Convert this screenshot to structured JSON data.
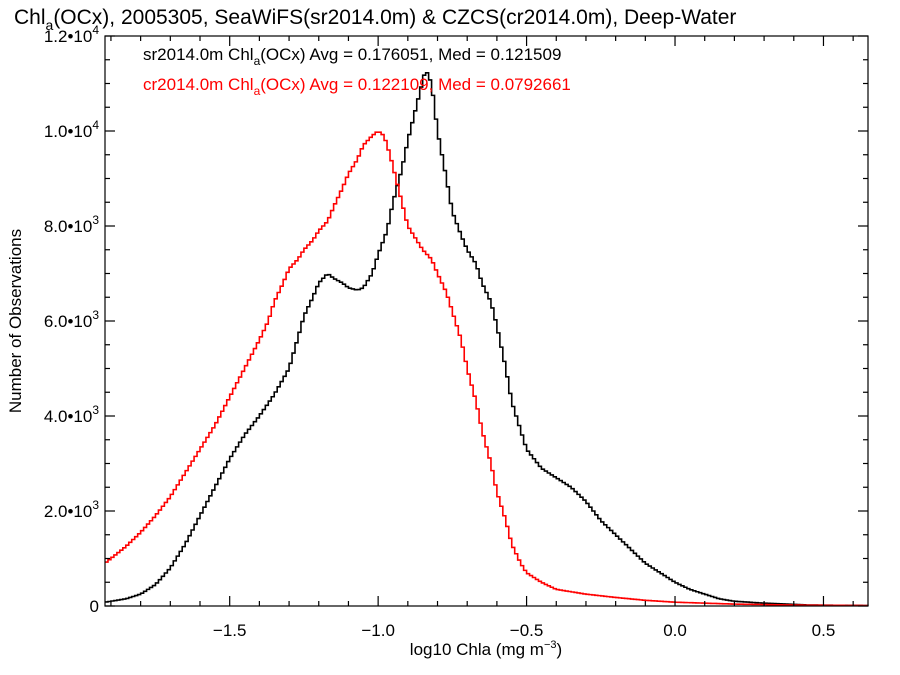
{
  "chart_data": {
    "type": "histogram",
    "title": "Chl_a(OCx), 2005305, SeaWiFS(sr2014.0m) & CZCS(cr2014.0m), Deep-Water",
    "title_parts": {
      "pre": "Chl",
      "sub": "a",
      "post": "(OCx), 2005305, SeaWiFS(sr2014.0m) & CZCS(cr2014.0m), Deep-Water"
    },
    "xlabel": "log10 Chla (mg m^-3)",
    "xlabel_parts": {
      "pre": "log10 Chla (mg m",
      "sup": "−3",
      "post": ")"
    },
    "ylabel": "Number of Observations",
    "xlim": [
      -1.92,
      0.65
    ],
    "ylim": [
      0,
      12000
    ],
    "x_ticks": [
      -1.5,
      -1.0,
      -0.5,
      0.0,
      0.5
    ],
    "x_tick_labels": [
      "−1.5",
      "−1.0",
      "−0.5",
      "0.0",
      "0.5"
    ],
    "y_ticks": [
      {
        "value": 0,
        "mant": "0",
        "exp": ""
      },
      {
        "value": 2000,
        "mant": "2.0•10",
        "exp": "3"
      },
      {
        "value": 4000,
        "mant": "4.0•10",
        "exp": "3"
      },
      {
        "value": 6000,
        "mant": "6.0•10",
        "exp": "3"
      },
      {
        "value": 8000,
        "mant": "8.0•10",
        "exp": "3"
      },
      {
        "value": 10000,
        "mant": "1.0•10",
        "exp": "4"
      },
      {
        "value": 12000,
        "mant": "1.2•10",
        "exp": "4"
      }
    ],
    "legend": [
      {
        "pre": "sr2014.0m Chl",
        "sub": "a",
        "post": "(OCx) Avg = 0.176051, Med = 0.121509",
        "color": "#000000"
      },
      {
        "pre": "cr2014.0m Chl",
        "sub": "a",
        "post": "(OCx) Avg = 0.122109, Med = 0.0792661",
        "color": "#ff0000"
      }
    ],
    "series": [
      {
        "name": "sr2014.0m",
        "color": "#000000",
        "points": [
          [
            -1.92,
            80
          ],
          [
            -1.85,
            150
          ],
          [
            -1.8,
            250
          ],
          [
            -1.75,
            450
          ],
          [
            -1.7,
            800
          ],
          [
            -1.65,
            1300
          ],
          [
            -1.6,
            1900
          ],
          [
            -1.55,
            2500
          ],
          [
            -1.5,
            3100
          ],
          [
            -1.45,
            3600
          ],
          [
            -1.4,
            4000
          ],
          [
            -1.35,
            4450
          ],
          [
            -1.3,
            5000
          ],
          [
            -1.27,
            5650
          ],
          [
            -1.25,
            6100
          ],
          [
            -1.22,
            6500
          ],
          [
            -1.2,
            6800
          ],
          [
            -1.17,
            7000
          ],
          [
            -1.15,
            6900
          ],
          [
            -1.12,
            6800
          ],
          [
            -1.1,
            6700
          ],
          [
            -1.07,
            6650
          ],
          [
            -1.05,
            6700
          ],
          [
            -1.02,
            7000
          ],
          [
            -1.0,
            7400
          ],
          [
            -0.97,
            7900
          ],
          [
            -0.95,
            8500
          ],
          [
            -0.92,
            9200
          ],
          [
            -0.9,
            9800
          ],
          [
            -0.88,
            10300
          ],
          [
            -0.86,
            10800
          ],
          [
            -0.84,
            11300
          ],
          [
            -0.82,
            11000
          ],
          [
            -0.8,
            10000
          ],
          [
            -0.77,
            9000
          ],
          [
            -0.75,
            8300
          ],
          [
            -0.72,
            7800
          ],
          [
            -0.7,
            7500
          ],
          [
            -0.67,
            7200
          ],
          [
            -0.65,
            6800
          ],
          [
            -0.62,
            6400
          ],
          [
            -0.6,
            5900
          ],
          [
            -0.57,
            5000
          ],
          [
            -0.55,
            4300
          ],
          [
            -0.52,
            3700
          ],
          [
            -0.5,
            3300
          ],
          [
            -0.45,
            2900
          ],
          [
            -0.4,
            2700
          ],
          [
            -0.35,
            2500
          ],
          [
            -0.3,
            2200
          ],
          [
            -0.25,
            1800
          ],
          [
            -0.2,
            1500
          ],
          [
            -0.15,
            1200
          ],
          [
            -0.1,
            900
          ],
          [
            -0.05,
            700
          ],
          [
            0.0,
            500
          ],
          [
            0.05,
            350
          ],
          [
            0.1,
            250
          ],
          [
            0.15,
            150
          ],
          [
            0.2,
            100
          ],
          [
            0.3,
            60
          ],
          [
            0.45,
            20
          ],
          [
            0.65,
            10
          ]
        ]
      },
      {
        "name": "cr2014.0m",
        "color": "#ff0000",
        "points": [
          [
            -1.92,
            900
          ],
          [
            -1.88,
            1100
          ],
          [
            -1.85,
            1250
          ],
          [
            -1.8,
            1550
          ],
          [
            -1.75,
            1900
          ],
          [
            -1.7,
            2300
          ],
          [
            -1.65,
            2800
          ],
          [
            -1.6,
            3300
          ],
          [
            -1.55,
            3800
          ],
          [
            -1.5,
            4400
          ],
          [
            -1.45,
            5000
          ],
          [
            -1.4,
            5600
          ],
          [
            -1.37,
            6000
          ],
          [
            -1.35,
            6400
          ],
          [
            -1.32,
            6800
          ],
          [
            -1.3,
            7100
          ],
          [
            -1.27,
            7300
          ],
          [
            -1.25,
            7500
          ],
          [
            -1.22,
            7700
          ],
          [
            -1.2,
            7900
          ],
          [
            -1.17,
            8100
          ],
          [
            -1.15,
            8400
          ],
          [
            -1.12,
            8800
          ],
          [
            -1.1,
            9100
          ],
          [
            -1.07,
            9400
          ],
          [
            -1.05,
            9700
          ],
          [
            -1.02,
            9900
          ],
          [
            -1.0,
            10000
          ],
          [
            -0.98,
            9900
          ],
          [
            -0.96,
            9500
          ],
          [
            -0.94,
            9000
          ],
          [
            -0.92,
            8500
          ],
          [
            -0.9,
            8000
          ],
          [
            -0.88,
            7800
          ],
          [
            -0.85,
            7500
          ],
          [
            -0.82,
            7300
          ],
          [
            -0.8,
            7000
          ],
          [
            -0.77,
            6600
          ],
          [
            -0.75,
            6200
          ],
          [
            -0.72,
            5600
          ],
          [
            -0.7,
            5000
          ],
          [
            -0.67,
            4300
          ],
          [
            -0.65,
            3700
          ],
          [
            -0.62,
            3000
          ],
          [
            -0.6,
            2400
          ],
          [
            -0.57,
            1800
          ],
          [
            -0.55,
            1300
          ],
          [
            -0.52,
            900
          ],
          [
            -0.5,
            700
          ],
          [
            -0.45,
            500
          ],
          [
            -0.4,
            350
          ],
          [
            -0.35,
            300
          ],
          [
            -0.3,
            250
          ],
          [
            -0.2,
            180
          ],
          [
            -0.1,
            120
          ],
          [
            0.0,
            80
          ],
          [
            0.1,
            60
          ],
          [
            0.2,
            40
          ],
          [
            0.4,
            20
          ],
          [
            0.65,
            10
          ]
        ]
      }
    ]
  }
}
